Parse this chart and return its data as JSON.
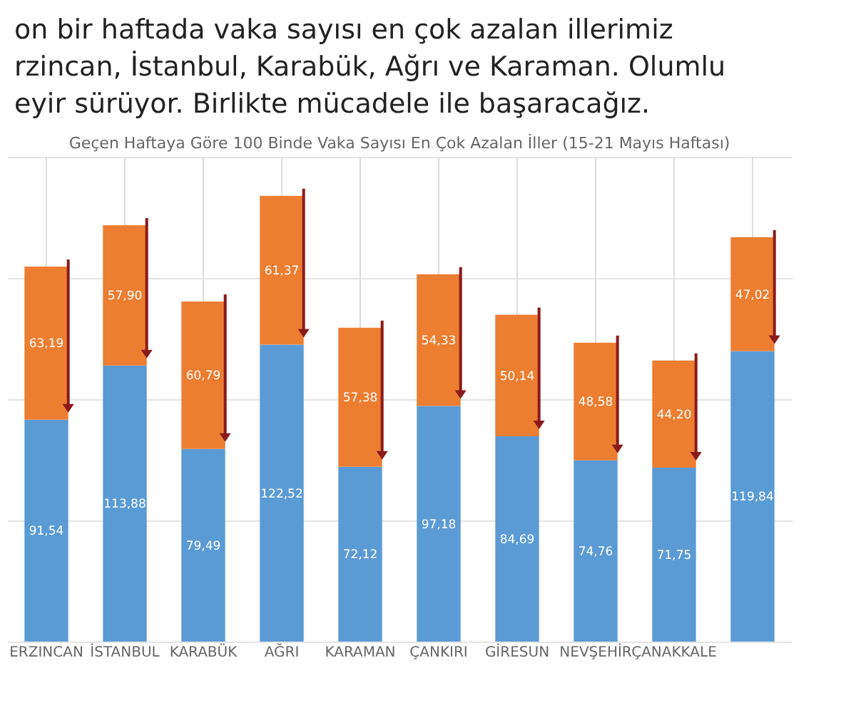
{
  "chart_data": {
    "type": "bar",
    "stacked": true,
    "title": "Geçen Haftaya Göre 100 Binde Vaka Sayısı En Çok Azalan İller (15-21 Mayıs Haftası)",
    "annotations": [
      "on bir haftada vaka sayısı en çok azalan illerimiz",
      "rzincan, İstanbul, Karabük, Ağrı ve Karaman. Olumlu",
      "eyir sürüyor. Birlikte mücadele ile başaracağız."
    ],
    "categories": [
      "ERZINCAN",
      "İSTANBUL",
      "KARABÜK",
      "AĞRI",
      "KARAMAN",
      "ÇANKIRI",
      "GİRESUN",
      "NEVŞEHİR",
      "ÇANAKKALE",
      null
    ],
    "series": [
      {
        "color": "#5b9bd5",
        "values": [
          91.54,
          113.88,
          79.49,
          122.52,
          72.12,
          97.18,
          84.69,
          74.76,
          71.75,
          119.84
        ],
        "value_labels": [
          "91,54",
          "113,88",
          "79,49",
          "122,52",
          "72,12",
          "97,18",
          "84,69",
          "74,76",
          "71,75",
          "119,84"
        ]
      },
      {
        "color": "#ed7d31",
        "values": [
          63.19,
          57.9,
          60.79,
          61.37,
          57.38,
          54.33,
          50.14,
          48.58,
          44.2,
          47.02
        ],
        "value_labels": [
          "63,19",
          "57,90",
          "60,79",
          "61,37",
          "57,38",
          "54,33",
          "50,14",
          "48,58",
          "44,20",
          "47,02"
        ]
      }
    ],
    "ylim": [
      0,
      200
    ],
    "yticks": [
      0,
      50,
      100,
      150,
      200
    ],
    "tick_labels": "x",
    "grid": true
  }
}
